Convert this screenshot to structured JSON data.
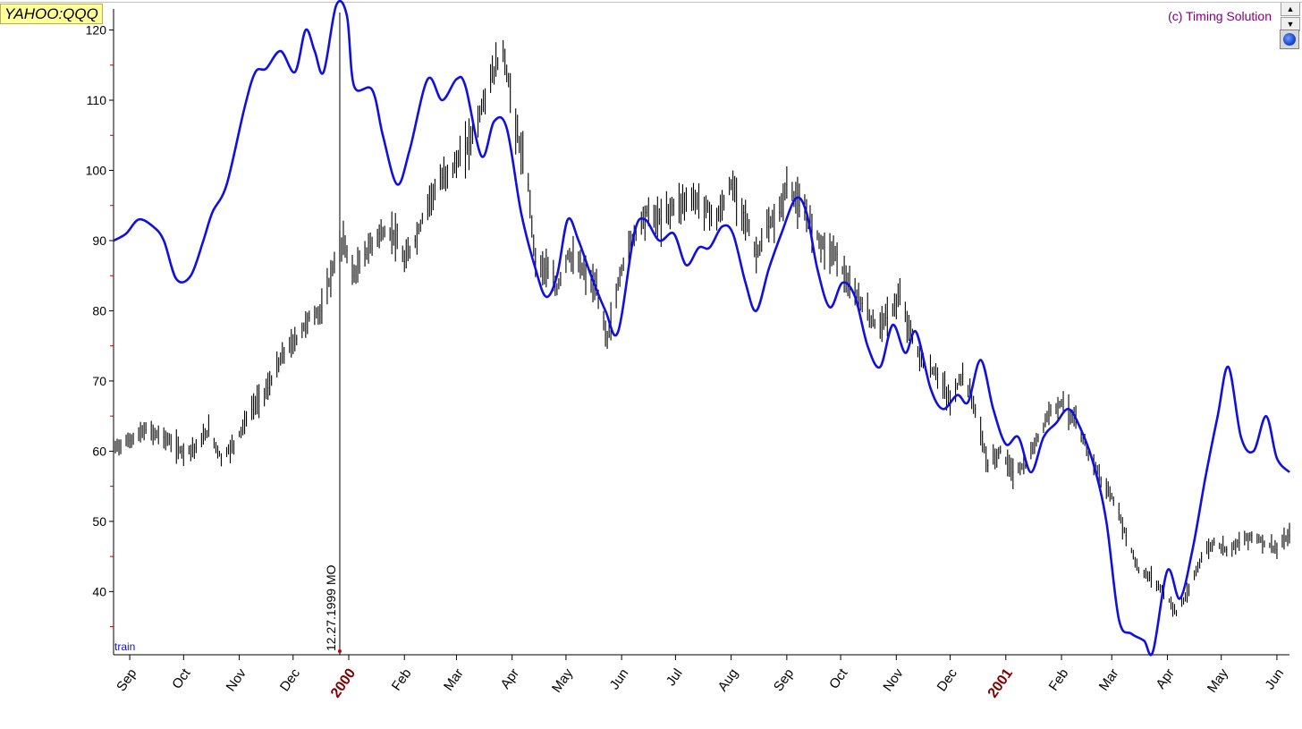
{
  "header": {
    "ticker": "YAHOO:QQQ",
    "copyright": "(c) Timing Solution"
  },
  "icons": {
    "scroll_up": "triangle-up-icon",
    "scroll_down": "triangle-down-icon",
    "globe": "globe-icon"
  },
  "colors": {
    "background": "#ffffff",
    "price_bars": "#000000",
    "projection_line": "#1010e0",
    "year_label": "#800000",
    "copyright": "#800080",
    "ticker_bg": "#ffff99"
  },
  "chart_data": {
    "type": "line",
    "ylim": [
      31,
      123
    ],
    "y_ticks": [
      40,
      50,
      60,
      70,
      80,
      90,
      100,
      110,
      120
    ],
    "x_start": "1999-08-23",
    "x_end": "2001-06-08",
    "x_tick_labels": [
      {
        "date": "1999-09-01",
        "label": "Sep",
        "year": false
      },
      {
        "date": "1999-10-01",
        "label": "Oct",
        "year": false
      },
      {
        "date": "1999-11-01",
        "label": "Nov",
        "year": false
      },
      {
        "date": "1999-12-01",
        "label": "Dec",
        "year": false
      },
      {
        "date": "2000-01-01",
        "label": "2000",
        "year": true
      },
      {
        "date": "2000-02-01",
        "label": "Feb",
        "year": false
      },
      {
        "date": "2000-03-01",
        "label": "Mar",
        "year": false
      },
      {
        "date": "2000-04-01",
        "label": "Apr",
        "year": false
      },
      {
        "date": "2000-05-01",
        "label": "May",
        "year": false
      },
      {
        "date": "2000-06-01",
        "label": "Jun",
        "year": false
      },
      {
        "date": "2000-07-01",
        "label": "Jul",
        "year": false
      },
      {
        "date": "2000-08-01",
        "label": "Aug",
        "year": false
      },
      {
        "date": "2000-09-01",
        "label": "Sep",
        "year": false
      },
      {
        "date": "2000-10-01",
        "label": "Oct",
        "year": false
      },
      {
        "date": "2000-11-01",
        "label": "Nov",
        "year": false
      },
      {
        "date": "2000-12-01",
        "label": "Dec",
        "year": false
      },
      {
        "date": "2001-01-01",
        "label": "2001",
        "year": true
      },
      {
        "date": "2001-02-01",
        "label": "Feb",
        "year": false
      },
      {
        "date": "2001-03-01",
        "label": "Mar",
        "year": false
      },
      {
        "date": "2001-04-01",
        "label": "Apr",
        "year": false
      },
      {
        "date": "2001-05-01",
        "label": "May",
        "year": false
      },
      {
        "date": "2001-06-01",
        "label": "Jun",
        "year": false
      }
    ],
    "vertical_marker": {
      "date": "1999-12-27",
      "label": "12.27.1999 MO"
    },
    "train_label": "train",
    "price_series": {
      "name": "",
      "points": [
        [
          "1999-08-23",
          60.5
        ],
        [
          "1999-09-01",
          61.5
        ],
        [
          "1999-09-10",
          63
        ],
        [
          "1999-09-20",
          62
        ],
        [
          "1999-09-30",
          60
        ],
        [
          "1999-10-08",
          60.5
        ],
        [
          "1999-10-15",
          63
        ],
        [
          "1999-10-22",
          59
        ],
        [
          "1999-10-29",
          61
        ],
        [
          "1999-11-08",
          66
        ],
        [
          "1999-11-17",
          69
        ],
        [
          "1999-11-26",
          74
        ],
        [
          "1999-12-03",
          76
        ],
        [
          "1999-12-10",
          79
        ],
        [
          "1999-12-17",
          80
        ],
        [
          "1999-12-23",
          86
        ],
        [
          "1999-12-29",
          90
        ],
        [
          "2000-01-04",
          85
        ],
        [
          "2000-01-10",
          88
        ],
        [
          "2000-01-18",
          91
        ],
        [
          "2000-01-26",
          91
        ],
        [
          "2000-02-01",
          87
        ],
        [
          "2000-02-07",
          90
        ],
        [
          "2000-02-15",
          96
        ],
        [
          "2000-02-23",
          99
        ],
        [
          "2000-03-01",
          101
        ],
        [
          "2000-03-08",
          104
        ],
        [
          "2000-03-14",
          108
        ],
        [
          "2000-03-20",
          113
        ],
        [
          "2000-03-27",
          117
        ],
        [
          "2000-04-04",
          105
        ],
        [
          "2000-04-10",
          98
        ],
        [
          "2000-04-14",
          87
        ],
        [
          "2000-04-20",
          86
        ],
        [
          "2000-04-26",
          83
        ],
        [
          "2000-05-02",
          88
        ],
        [
          "2000-05-10",
          86
        ],
        [
          "2000-05-18",
          83
        ],
        [
          "2000-05-24",
          76
        ],
        [
          "2000-06-01",
          86
        ],
        [
          "2000-06-08",
          91
        ],
        [
          "2000-06-15",
          94
        ],
        [
          "2000-06-23",
          93
        ],
        [
          "2000-06-30",
          95
        ],
        [
          "2000-07-10",
          96
        ],
        [
          "2000-07-17",
          95
        ],
        [
          "2000-07-24",
          93
        ],
        [
          "2000-08-01",
          98
        ],
        [
          "2000-08-08",
          94
        ],
        [
          "2000-08-15",
          88
        ],
        [
          "2000-08-22",
          92
        ],
        [
          "2000-08-28",
          94
        ],
        [
          "2000-09-01",
          98
        ],
        [
          "2000-09-08",
          95
        ],
        [
          "2000-09-15",
          92
        ],
        [
          "2000-09-22",
          89
        ],
        [
          "2000-09-29",
          88
        ],
        [
          "2000-10-06",
          83
        ],
        [
          "2000-10-13",
          81
        ],
        [
          "2000-10-20",
          78
        ],
        [
          "2000-10-27",
          79
        ],
        [
          "2000-11-03",
          82
        ],
        [
          "2000-11-10",
          76
        ],
        [
          "2000-11-17",
          72
        ],
        [
          "2000-11-24",
          71
        ],
        [
          "2000-12-01",
          67
        ],
        [
          "2000-12-08",
          71
        ],
        [
          "2000-12-15",
          66
        ],
        [
          "2000-12-22",
          58
        ],
        [
          "2000-12-29",
          60
        ],
        [
          "2001-01-05",
          57
        ],
        [
          "2001-01-12",
          58
        ],
        [
          "2001-01-19",
          62
        ],
        [
          "2001-01-26",
          66
        ],
        [
          "2001-02-02",
          67
        ],
        [
          "2001-02-09",
          64
        ],
        [
          "2001-02-16",
          60
        ],
        [
          "2001-02-23",
          56
        ],
        [
          "2001-03-02",
          53
        ],
        [
          "2001-03-09",
          48
        ],
        [
          "2001-03-16",
          43
        ],
        [
          "2001-03-23",
          42
        ],
        [
          "2001-03-30",
          40
        ],
        [
          "2001-04-06",
          37
        ],
        [
          "2001-04-13",
          40
        ],
        [
          "2001-04-20",
          45
        ],
        [
          "2001-04-27",
          47
        ],
        [
          "2001-05-04",
          46
        ],
        [
          "2001-05-11",
          47
        ],
        [
          "2001-05-18",
          48
        ],
        [
          "2001-05-25",
          47
        ],
        [
          "2001-06-01",
          46
        ],
        [
          "2001-06-08",
          48
        ]
      ]
    },
    "projection_series": {
      "name": "",
      "points": [
        [
          "1999-08-23",
          90
        ],
        [
          "1999-08-30",
          91
        ],
        [
          "1999-09-06",
          93
        ],
        [
          "1999-09-14",
          92
        ],
        [
          "1999-09-20",
          90
        ],
        [
          "1999-09-27",
          84.5
        ],
        [
          "1999-10-05",
          85
        ],
        [
          "1999-10-12",
          90
        ],
        [
          "1999-10-17",
          94
        ],
        [
          "1999-10-25",
          98
        ],
        [
          "1999-11-04",
          109
        ],
        [
          "1999-11-10",
          114
        ],
        [
          "1999-11-16",
          114.5
        ],
        [
          "1999-11-24",
          117
        ],
        [
          "1999-12-02",
          114
        ],
        [
          "1999-12-08",
          120
        ],
        [
          "1999-12-13",
          117
        ],
        [
          "1999-12-18",
          114
        ],
        [
          "1999-12-25",
          123.5
        ],
        [
          "1999-12-31",
          122
        ],
        [
          "2000-01-04",
          112
        ],
        [
          "2000-01-14",
          111.5
        ],
        [
          "2000-01-20",
          105
        ],
        [
          "2000-01-28",
          98
        ],
        [
          "2000-02-04",
          103
        ],
        [
          "2000-02-14",
          113
        ],
        [
          "2000-02-22",
          110
        ],
        [
          "2000-03-01",
          113
        ],
        [
          "2000-03-06",
          112
        ],
        [
          "2000-03-15",
          102
        ],
        [
          "2000-03-22",
          107
        ],
        [
          "2000-03-29",
          106
        ],
        [
          "2000-04-06",
          94
        ],
        [
          "2000-04-14",
          86
        ],
        [
          "2000-04-20",
          82
        ],
        [
          "2000-04-26",
          85
        ],
        [
          "2000-05-02",
          93
        ],
        [
          "2000-05-08",
          90
        ],
        [
          "2000-05-15",
          85
        ],
        [
          "2000-05-23",
          80
        ],
        [
          "2000-05-30",
          77
        ],
        [
          "2000-06-08",
          91
        ],
        [
          "2000-06-14",
          93
        ],
        [
          "2000-06-22",
          90
        ],
        [
          "2000-06-30",
          91
        ],
        [
          "2000-07-07",
          86.5
        ],
        [
          "2000-07-14",
          89
        ],
        [
          "2000-07-20",
          89
        ],
        [
          "2000-07-27",
          92
        ],
        [
          "2000-08-02",
          91
        ],
        [
          "2000-08-09",
          84
        ],
        [
          "2000-08-15",
          80
        ],
        [
          "2000-08-22",
          86
        ],
        [
          "2000-08-29",
          91
        ],
        [
          "2000-09-06",
          96
        ],
        [
          "2000-09-12",
          94
        ],
        [
          "2000-09-18",
          86
        ],
        [
          "2000-09-25",
          80.5
        ],
        [
          "2000-10-02",
          84
        ],
        [
          "2000-10-09",
          82
        ],
        [
          "2000-10-16",
          75
        ],
        [
          "2000-10-23",
          72
        ],
        [
          "2000-10-30",
          78
        ],
        [
          "2000-11-06",
          74
        ],
        [
          "2000-11-12",
          77
        ],
        [
          "2000-11-20",
          69
        ],
        [
          "2000-11-27",
          66
        ],
        [
          "2000-12-05",
          68
        ],
        [
          "2000-12-11",
          67
        ],
        [
          "2000-12-18",
          73
        ],
        [
          "2000-12-25",
          66
        ],
        [
          "2001-01-01",
          61
        ],
        [
          "2001-01-08",
          62
        ],
        [
          "2001-01-15",
          57
        ],
        [
          "2001-01-22",
          62
        ],
        [
          "2001-01-29",
          64
        ],
        [
          "2001-02-05",
          66
        ],
        [
          "2001-02-12",
          63
        ],
        [
          "2001-02-19",
          58
        ],
        [
          "2001-02-26",
          50
        ],
        [
          "2001-03-05",
          36
        ],
        [
          "2001-03-12",
          34
        ],
        [
          "2001-03-19",
          33
        ],
        [
          "2001-03-24",
          31.5
        ],
        [
          "2001-04-01",
          43
        ],
        [
          "2001-04-08",
          39
        ],
        [
          "2001-04-15",
          46
        ],
        [
          "2001-04-22",
          56
        ],
        [
          "2001-04-29",
          65
        ],
        [
          "2001-05-05",
          72
        ],
        [
          "2001-05-12",
          62
        ],
        [
          "2001-05-19",
          60
        ],
        [
          "2001-05-26",
          65
        ],
        [
          "2001-06-01",
          59
        ],
        [
          "2001-06-08",
          57
        ]
      ]
    }
  }
}
